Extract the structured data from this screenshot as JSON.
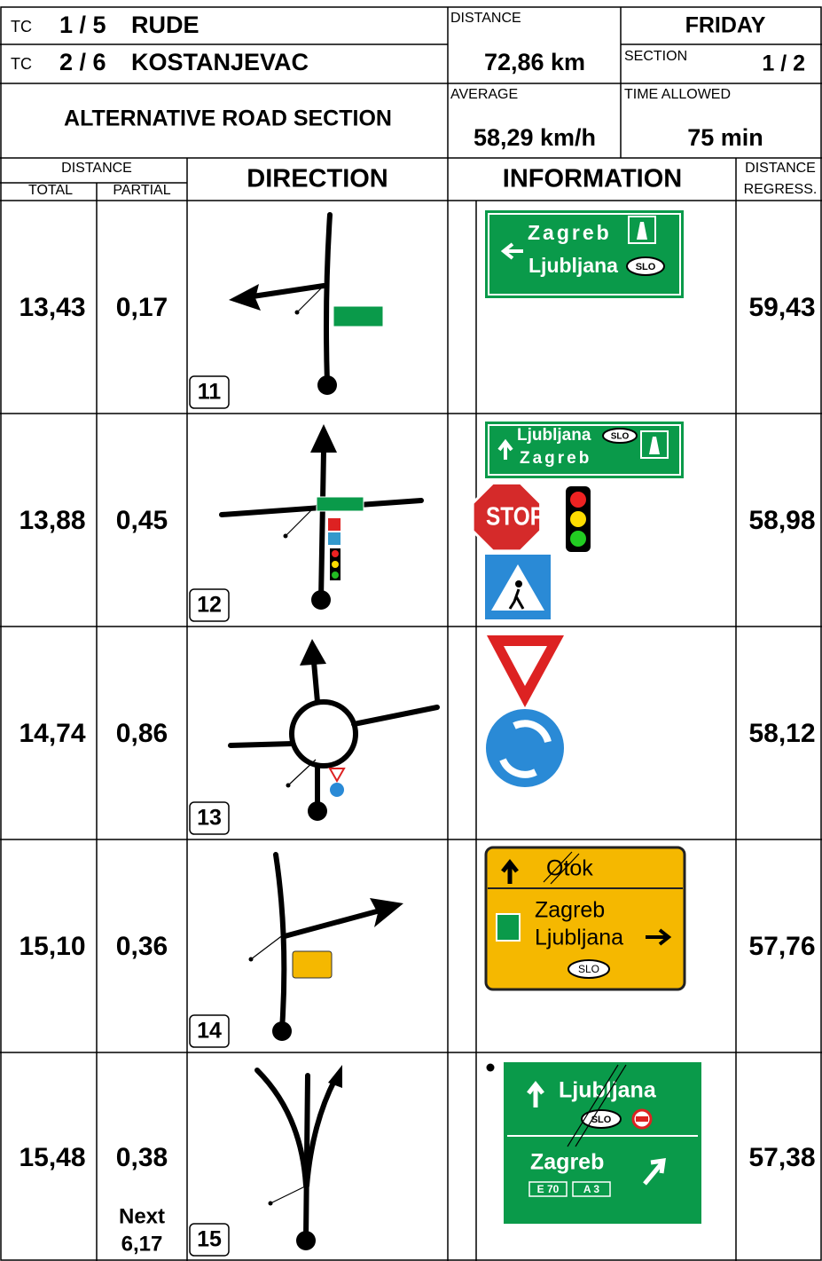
{
  "header": {
    "tc_label_1": "TC",
    "tc_1": "1 / 5",
    "location_1": "RUDE",
    "distance_label": "DISTANCE",
    "day": "FRIDAY",
    "tc_label_2": "TC",
    "tc_2": "2 / 6",
    "location_2": "KOSTANJEVAC",
    "distance": "72,86 km",
    "section_label": "SECTION",
    "section": "1 / 2",
    "title": "ALTERNATIVE ROAD SECTION",
    "average_label": "AVERAGE",
    "average": "58,29 km/h",
    "time_label": "TIME ALLOWED",
    "time": "75 min"
  },
  "columns": {
    "distance": "DISTANCE",
    "total": "TOTAL",
    "partial": "PARTIAL",
    "direction": "DIRECTION",
    "information": "INFORMATION",
    "regress": [
      "DISTANCE",
      "REGRESS."
    ]
  },
  "rows": [
    {
      "total": "13,43",
      "partial": "0,17",
      "number": "11",
      "regress": "59,43",
      "sign_text": [
        "Zagreb",
        "Ljubljana",
        "SLO"
      ]
    },
    {
      "total": "13,88",
      "partial": "0,45",
      "number": "12",
      "regress": "58,98",
      "sign_text": [
        "Ljubljana",
        "SLO",
        "Zagreb",
        "STOP"
      ]
    },
    {
      "total": "14,74",
      "partial": "0,86",
      "number": "13",
      "regress": "58,12",
      "sign_text": []
    },
    {
      "total": "15,10",
      "partial": "0,36",
      "number": "14",
      "regress": "57,76",
      "sign_text": [
        "Otok",
        "Zagreb",
        "Ljubljana",
        "SLO"
      ]
    },
    {
      "total": "15,48",
      "partial": "0,38",
      "number": "15",
      "regress": "57,38",
      "sign_text": [
        "Ljubljana",
        "SLO",
        "Zagreb",
        "E 70",
        "A 3"
      ]
    }
  ],
  "next": {
    "label": "Next",
    "distance": "6,17"
  }
}
